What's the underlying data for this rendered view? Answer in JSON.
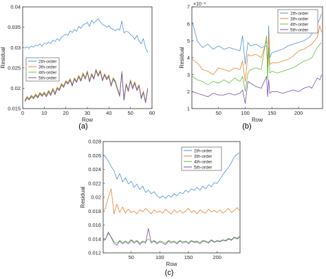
{
  "panel_labels": [
    "(a)",
    "(b)",
    "(c)"
  ],
  "colors": {
    "2th-order": "#4a90d9",
    "3th-order": "#f07d2a",
    "4th-order": "#5dbf3a",
    "5th-order": "#7a4aa8"
  },
  "chart_data": [
    {
      "type": "line",
      "panel": "(a)",
      "xlabel": "Row",
      "ylabel": "Residual",
      "xlim": [
        0,
        60
      ],
      "ylim": [
        0.015,
        0.04
      ],
      "xticks": [
        "0",
        "10",
        "20",
        "30",
        "40",
        "50",
        "60"
      ],
      "yticks": [
        "0.015",
        "0.02",
        "0.025",
        "0.03",
        "0.035",
        "0.04"
      ],
      "legend_position": "lower-left",
      "x": [
        1,
        2,
        3,
        4,
        5,
        6,
        7,
        8,
        9,
        10,
        11,
        12,
        13,
        14,
        15,
        16,
        17,
        18,
        19,
        20,
        21,
        22,
        23,
        24,
        25,
        26,
        27,
        28,
        29,
        30,
        31,
        32,
        33,
        34,
        35,
        36,
        37,
        38,
        39,
        40,
        41,
        42,
        43,
        44,
        45,
        46,
        47,
        48,
        49,
        50,
        51,
        52,
        53,
        54,
        55,
        56,
        57,
        58
      ],
      "series": [
        {
          "name": "2th-order",
          "values": [
            0.0298,
            0.0302,
            0.0298,
            0.0304,
            0.0301,
            0.0306,
            0.0304,
            0.0309,
            0.0303,
            0.0311,
            0.0308,
            0.0314,
            0.031,
            0.0318,
            0.0315,
            0.0322,
            0.0317,
            0.0326,
            0.0329,
            0.0333,
            0.033,
            0.0341,
            0.0337,
            0.0345,
            0.034,
            0.0352,
            0.0347,
            0.0356,
            0.0358,
            0.0362,
            0.0352,
            0.0367,
            0.036,
            0.0365,
            0.0371,
            0.0363,
            0.0357,
            0.0354,
            0.035,
            0.0354,
            0.0347,
            0.0345,
            0.0341,
            0.0346,
            0.0343,
            0.0365,
            0.0336,
            0.034,
            0.0338,
            0.0332,
            0.0328,
            0.032,
            0.033,
            0.0316,
            0.0309,
            0.0322,
            0.0299,
            0.0288
          ]
        },
        {
          "name": "3th-order",
          "values": [
            0.0171,
            0.018,
            0.0175,
            0.0183,
            0.0178,
            0.0186,
            0.018,
            0.019,
            0.0184,
            0.0191,
            0.0183,
            0.0195,
            0.0186,
            0.02,
            0.0188,
            0.0203,
            0.0198,
            0.0212,
            0.0206,
            0.0219,
            0.0214,
            0.0224,
            0.0209,
            0.0226,
            0.0218,
            0.0232,
            0.0221,
            0.0238,
            0.0226,
            0.0243,
            0.0219,
            0.0237,
            0.0226,
            0.0247,
            0.0233,
            0.0245,
            0.0222,
            0.0236,
            0.0225,
            0.0233,
            0.0209,
            0.0226,
            0.0218,
            0.02,
            0.0184,
            0.0242,
            0.0174,
            0.0212,
            0.0196,
            0.0221,
            0.0202,
            0.0216,
            0.0198,
            0.0209,
            0.0178,
            0.0193,
            0.0168,
            0.0201
          ]
        },
        {
          "name": "4th-order",
          "values": [
            0.0169,
            0.0178,
            0.0173,
            0.0181,
            0.0176,
            0.0184,
            0.0178,
            0.0188,
            0.0182,
            0.0189,
            0.0181,
            0.0193,
            0.0184,
            0.0198,
            0.0186,
            0.0201,
            0.0196,
            0.021,
            0.0204,
            0.0217,
            0.0212,
            0.0222,
            0.0207,
            0.0224,
            0.0216,
            0.023,
            0.0219,
            0.0236,
            0.0224,
            0.0241,
            0.0217,
            0.0235,
            0.0224,
            0.0245,
            0.0231,
            0.0243,
            0.022,
            0.0234,
            0.0223,
            0.0231,
            0.0207,
            0.0224,
            0.0216,
            0.0198,
            0.0182,
            0.024,
            0.0172,
            0.021,
            0.0194,
            0.0219,
            0.02,
            0.0214,
            0.0196,
            0.0207,
            0.0176,
            0.0191,
            0.0166,
            0.0199
          ]
        },
        {
          "name": "5th-order",
          "values": [
            0.0167,
            0.0176,
            0.0171,
            0.0179,
            0.0174,
            0.0182,
            0.0176,
            0.0186,
            0.018,
            0.0187,
            0.0179,
            0.0191,
            0.0182,
            0.0196,
            0.0184,
            0.0199,
            0.0194,
            0.0208,
            0.0202,
            0.0215,
            0.021,
            0.022,
            0.0205,
            0.0222,
            0.0214,
            0.0228,
            0.0217,
            0.0234,
            0.0222,
            0.0239,
            0.0215,
            0.0233,
            0.0222,
            0.0243,
            0.0229,
            0.0241,
            0.0218,
            0.0232,
            0.0221,
            0.0229,
            0.0205,
            0.0222,
            0.0214,
            0.0196,
            0.018,
            0.0238,
            0.017,
            0.0208,
            0.0192,
            0.0217,
            0.0198,
            0.0212,
            0.0194,
            0.0205,
            0.0174,
            0.0189,
            0.0164,
            0.0197
          ]
        }
      ]
    },
    {
      "type": "line",
      "panel": "(b)",
      "xlabel": "Row",
      "ylabel": "Residual",
      "y_exponent": "×10⁻³",
      "xlim": [
        0,
        245
      ],
      "ylim": [
        1,
        7
      ],
      "xticks": [
        "50",
        "100",
        "150",
        "200"
      ],
      "yticks": [
        "1",
        "2",
        "3",
        "4",
        "5",
        "6",
        "7"
      ],
      "legend_position": "top-right",
      "x": [
        1,
        10,
        20,
        30,
        40,
        50,
        60,
        70,
        80,
        90,
        95,
        100,
        105,
        110,
        120,
        130,
        140,
        142,
        144,
        146,
        150,
        160,
        170,
        180,
        190,
        200,
        210,
        220,
        225,
        230,
        235,
        240,
        243
      ],
      "series": [
        {
          "name": "2th-order",
          "values": [
            6.1,
            5.0,
            4.6,
            4.8,
            4.5,
            4.7,
            4.5,
            4.6,
            4.5,
            4.4,
            5.3,
            3.6,
            4.9,
            4.7,
            4.8,
            4.6,
            4.7,
            3.3,
            5.9,
            4.0,
            4.3,
            4.4,
            4.5,
            4.7,
            4.8,
            4.9,
            5.0,
            5.2,
            5.4,
            5.8,
            6.0,
            6.3,
            6.6
          ]
        },
        {
          "name": "3th-order",
          "values": [
            3.9,
            3.7,
            3.3,
            3.2,
            3.0,
            3.4,
            3.3,
            3.2,
            3.4,
            3.3,
            3.8,
            2.6,
            4.2,
            4.1,
            4.2,
            4.0,
            5.0,
            3.4,
            5.4,
            3.6,
            3.7,
            3.7,
            3.8,
            3.9,
            4.1,
            4.4,
            4.5,
            4.7,
            4.8,
            5.0,
            5.2,
            5.9,
            5.5
          ]
        },
        {
          "name": "4th-order",
          "values": [
            2.9,
            2.7,
            2.6,
            2.4,
            2.6,
            2.5,
            2.7,
            2.5,
            2.8,
            2.6,
            2.9,
            2.0,
            3.1,
            3.3,
            3.4,
            3.3,
            5.3,
            2.7,
            4.6,
            3.1,
            3.2,
            3.1,
            3.2,
            3.3,
            3.4,
            3.6,
            3.8,
            3.9,
            4.0,
            4.3,
            4.6,
            4.8,
            4.9
          ]
        },
        {
          "name": "5th-order",
          "values": [
            2.0,
            1.9,
            1.8,
            1.7,
            1.9,
            1.8,
            1.8,
            1.9,
            1.8,
            1.9,
            2.1,
            1.3,
            2.6,
            2.5,
            2.3,
            2.2,
            2.9,
            1.7,
            2.7,
            1.9,
            2.0,
            2.0,
            1.9,
            2.0,
            2.1,
            2.0,
            2.2,
            2.3,
            2.2,
            2.5,
            2.8,
            2.7,
            3.0
          ]
        }
      ]
    },
    {
      "type": "line",
      "panel": "(c)",
      "xlabel": "Row",
      "ylabel": "Residual",
      "xlim": [
        1,
        240
      ],
      "ylim": [
        0.012,
        0.028
      ],
      "xticks": [
        "50",
        "100",
        "150",
        "200"
      ],
      "yticks": [
        "0.012",
        "0.014",
        "0.016",
        "0.018",
        "0.02",
        "0.022",
        "0.024",
        "0.026",
        "0.028"
      ],
      "legend_position": "top-right",
      "x": [
        1,
        5,
        10,
        15,
        20,
        25,
        30,
        35,
        40,
        45,
        50,
        55,
        60,
        65,
        70,
        75,
        80,
        85,
        90,
        95,
        100,
        105,
        110,
        115,
        120,
        125,
        130,
        135,
        140,
        145,
        150,
        155,
        160,
        165,
        170,
        175,
        180,
        185,
        190,
        195,
        200,
        205,
        210,
        215,
        220,
        225,
        230,
        235,
        240
      ],
      "series": [
        {
          "name": "2th-order",
          "values": [
            0.0262,
            0.0258,
            0.0252,
            0.0244,
            0.0238,
            0.0226,
            0.0234,
            0.0222,
            0.0228,
            0.0219,
            0.0223,
            0.0214,
            0.0219,
            0.0211,
            0.0216,
            0.0207,
            0.021,
            0.0205,
            0.0208,
            0.0202,
            0.0199,
            0.0202,
            0.0198,
            0.0203,
            0.02,
            0.0205,
            0.0202,
            0.0207,
            0.0205,
            0.021,
            0.0207,
            0.0212,
            0.021,
            0.0214,
            0.021,
            0.0216,
            0.0212,
            0.0218,
            0.0215,
            0.0221,
            0.022,
            0.0226,
            0.0232,
            0.0238,
            0.0243,
            0.025,
            0.0258,
            0.0262,
            0.0264
          ]
        },
        {
          "name": "3th-order",
          "values": [
            0.0181,
            0.0184,
            0.02,
            0.0212,
            0.0176,
            0.019,
            0.0178,
            0.0186,
            0.0177,
            0.0183,
            0.0178,
            0.018,
            0.0176,
            0.0182,
            0.0179,
            0.0184,
            0.018,
            0.0176,
            0.0182,
            0.0178,
            0.018,
            0.0177,
            0.0183,
            0.0179,
            0.0176,
            0.0182,
            0.0178,
            0.0181,
            0.0177,
            0.018,
            0.0184,
            0.0178,
            0.0181,
            0.0176,
            0.0182,
            0.0179,
            0.0177,
            0.0183,
            0.0179,
            0.0181,
            0.0178,
            0.0182,
            0.0177,
            0.018,
            0.0184,
            0.0178,
            0.0181,
            0.0185,
            0.018
          ]
        },
        {
          "name": "4th-order",
          "values": [
            0.0139,
            0.014,
            0.0148,
            0.0143,
            0.0136,
            0.0134,
            0.0138,
            0.0135,
            0.0137,
            0.0135,
            0.0139,
            0.0136,
            0.0138,
            0.0134,
            0.0137,
            0.0136,
            0.014,
            0.0136,
            0.0138,
            0.0135,
            0.0137,
            0.0136,
            0.0134,
            0.0138,
            0.0136,
            0.0137,
            0.0135,
            0.0138,
            0.0136,
            0.0137,
            0.0135,
            0.0138,
            0.0136,
            0.0137,
            0.0135,
            0.0138,
            0.0137,
            0.0135,
            0.0139,
            0.0136,
            0.0138,
            0.0137,
            0.0139,
            0.0138,
            0.0141,
            0.0139,
            0.0143,
            0.0141,
            0.0145
          ]
        },
        {
          "name": "5th-order",
          "values": [
            0.0138,
            0.0139,
            0.015,
            0.0142,
            0.0134,
            0.0131,
            0.0137,
            0.0133,
            0.0136,
            0.0133,
            0.0138,
            0.0134,
            0.0137,
            0.0132,
            0.0136,
            0.0134,
            0.0155,
            0.0134,
            0.0137,
            0.0133,
            0.0136,
            0.0134,
            0.0132,
            0.0137,
            0.0134,
            0.0136,
            0.0133,
            0.0137,
            0.0134,
            0.0136,
            0.0133,
            0.0137,
            0.0135,
            0.0136,
            0.0133,
            0.0137,
            0.0136,
            0.0134,
            0.0138,
            0.0135,
            0.0137,
            0.0136,
            0.0138,
            0.0137,
            0.014,
            0.0138,
            0.0142,
            0.014,
            0.0143
          ]
        }
      ]
    }
  ]
}
